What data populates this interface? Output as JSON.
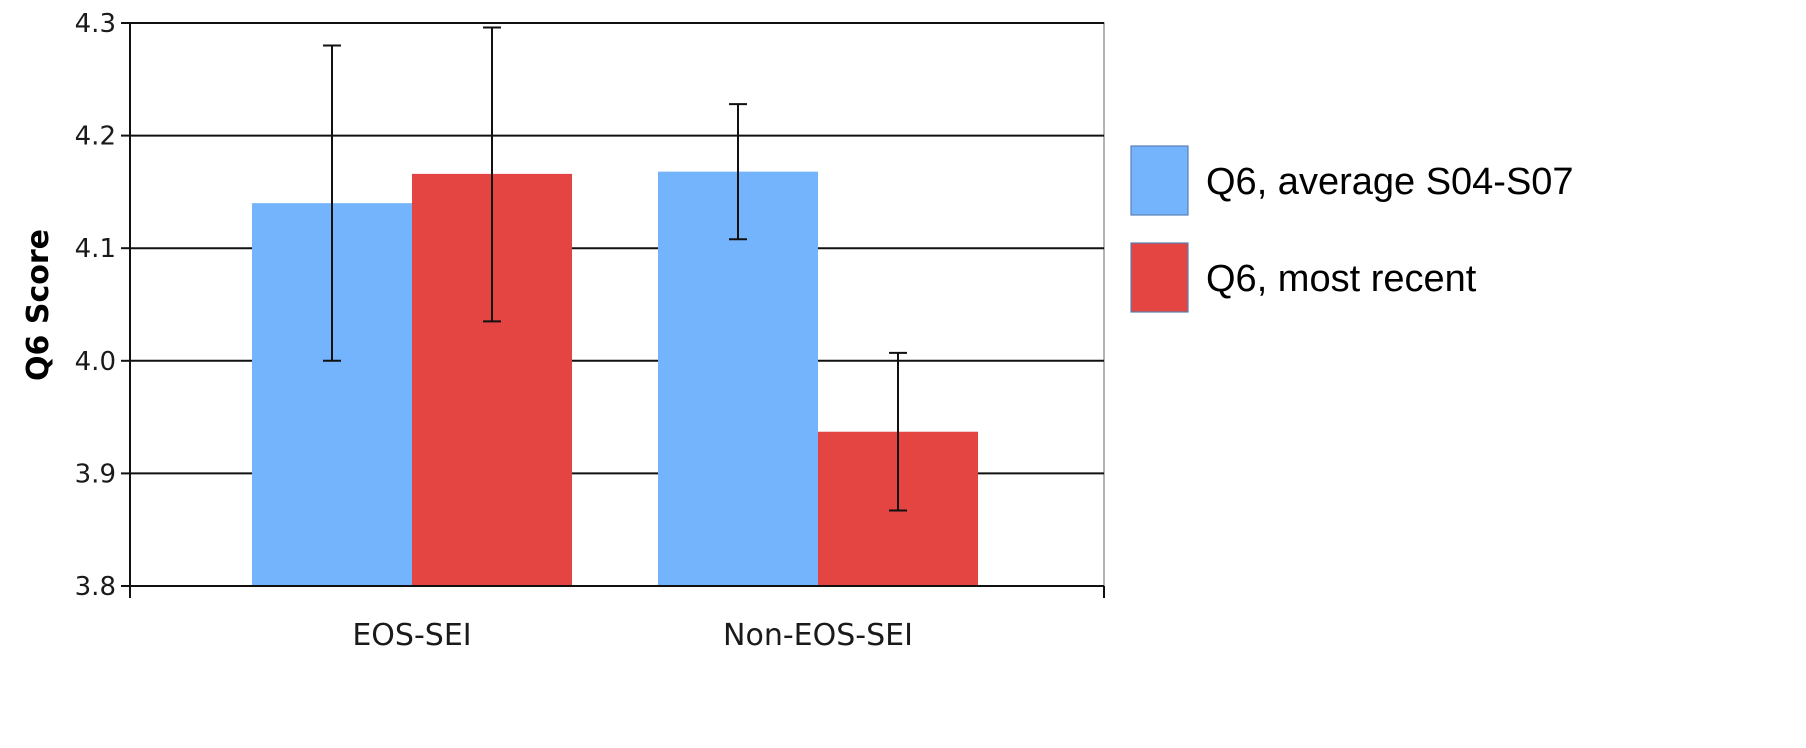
{
  "chart_data": {
    "type": "bar",
    "title": "",
    "xlabel": "",
    "ylabel": "Q6 Score",
    "ylim": [
      3.8,
      4.3
    ],
    "yticks": [
      "3.8",
      "3.9",
      "4.0",
      "4.1",
      "4.2",
      "4.3"
    ],
    "categories": [
      "EOS-SEI",
      "Non-EOS-SEI"
    ],
    "grid": true,
    "legend_position": "right",
    "series": [
      {
        "name": "Q6, average S04-S07",
        "color": "#74b4fc",
        "values": [
          4.14,
          4.168
        ],
        "error_low": [
          4.0,
          4.108
        ],
        "error_high": [
          4.28,
          4.228
        ]
      },
      {
        "name": "Q6, most recent",
        "color": "#e44442",
        "values": [
          4.166,
          3.937
        ],
        "error_low": [
          4.035,
          3.867
        ],
        "error_high": [
          4.296,
          4.007
        ]
      }
    ]
  }
}
